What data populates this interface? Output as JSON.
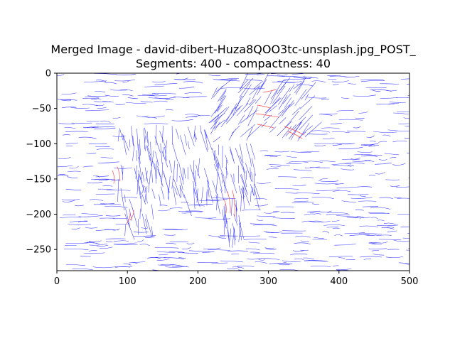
{
  "chart_data": {
    "type": "image",
    "title": "Merged Image - david-dibert-Huza8QOO3tc-unsplash.jpg_POST_",
    "subtitle": "Segments: 400 - compactness: 40",
    "xlim": [
      0,
      500
    ],
    "ylim": [
      -280,
      0
    ],
    "xticks": [
      "0",
      "100",
      "200",
      "300",
      "400",
      "500"
    ],
    "yticks": [
      "0",
      "−50",
      "−100",
      "−150",
      "−200",
      "−250"
    ],
    "xtick_values": [
      0,
      100,
      200,
      300,
      400,
      500
    ],
    "ytick_values": [
      0,
      -50,
      -100,
      -150,
      -200,
      -250
    ],
    "grid": false,
    "colors": {
      "background_strokes": "#3a3aff",
      "highlight_strokes": "#ff4a4a"
    }
  }
}
